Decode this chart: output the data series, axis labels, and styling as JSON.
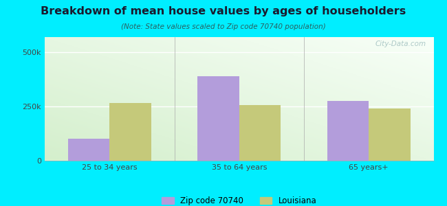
{
  "title": "Breakdown of mean house values by ages of householders",
  "subtitle": "(Note: State values scaled to Zip code 70740 population)",
  "categories": [
    "25 to 34 years",
    "35 to 64 years",
    "65 years+"
  ],
  "zip_values": [
    100000,
    390000,
    275000
  ],
  "state_values": [
    265000,
    255000,
    240000
  ],
  "zip_color": "#b39ddb",
  "state_color": "#c5c97a",
  "background_outer": "#00eeff",
  "gradient_top_color": "#f5fff5",
  "gradient_bottom_color": "#d4efcc",
  "ylim": [
    0,
    570000
  ],
  "yticks": [
    0,
    250000,
    500000
  ],
  "ytick_labels": [
    "0",
    "250k",
    "500k"
  ],
  "legend_labels": [
    "Zip code 70740",
    "Louisiana"
  ],
  "bar_width": 0.32,
  "watermark": "City-Data.com",
  "title_color": "#1a1a2e",
  "subtitle_color": "#2a6060",
  "tick_color": "#444444"
}
